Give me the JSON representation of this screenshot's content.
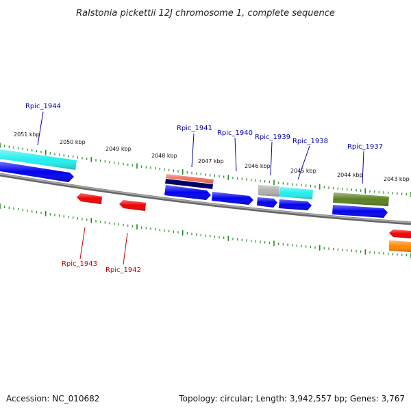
{
  "title": "Ralstonia pickettii 12J chromosome 1, complete sequence",
  "footer": {
    "accession": "Accession: NC_010682",
    "summary": "Topology: circular; Length: 3,942,557 bp; Genes: 3,767"
  },
  "ticks": [
    "2051 kbp",
    "2050 kbp",
    "2049 kbp",
    "2048 kbp",
    "2047 kbp",
    "2046 kbp",
    "2045 kbp",
    "2044 kbp",
    "2043 kbp"
  ],
  "gene_labels": {
    "g1944": "Rpic_1944",
    "g1941": "Rpic_1941",
    "g1940": "Rpic_1940",
    "g1939": "Rpic_1939",
    "g1938": "Rpic_1938",
    "g1937": "Rpic_1937",
    "g1943": "Rpic_1943",
    "g1942": "Rpic_1942"
  },
  "colors": {
    "forward_label": "#0000aa",
    "reverse_label": "#cc0000",
    "cds_blue": "#0000ee",
    "cyan": "#22eeee",
    "red": "#ee0000",
    "salmon": "#f07060",
    "navy": "#000066",
    "gray": "#b0b0b0",
    "olive": "#5a8020",
    "orange": "#ff8800",
    "backbone": "#888888",
    "tick": "#228b22"
  }
}
